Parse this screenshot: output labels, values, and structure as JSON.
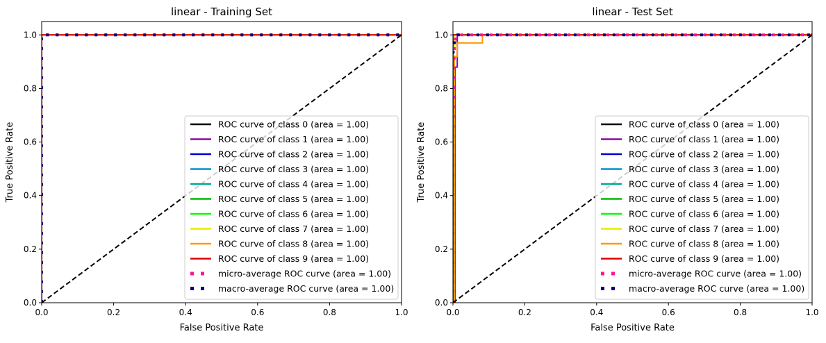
{
  "chart_data": [
    {
      "type": "line",
      "title": "linear - Training Set",
      "xlabel": "False Positive Rate",
      "ylabel": "True Positive Rate",
      "xlim": [
        0,
        1
      ],
      "ylim": [
        0,
        1.05
      ],
      "xticks": [
        "0.0",
        "0.2",
        "0.4",
        "0.6",
        "0.8",
        "1.0"
      ],
      "yticks": [
        "0.0",
        "0.2",
        "0.4",
        "0.6",
        "0.8",
        "1.0"
      ],
      "legend_position": "lower-right",
      "series": [
        {
          "name": "ROC curve of class 0 (area = 1.00)",
          "color": "#000000",
          "style": "solid",
          "x": [
            0,
            0,
            1
          ],
          "y": [
            0,
            1,
            1
          ]
        },
        {
          "name": "ROC curve of class 1 (area = 1.00)",
          "color": "#8a0aa0",
          "style": "solid",
          "x": [
            0,
            0,
            1
          ],
          "y": [
            0,
            1,
            1
          ]
        },
        {
          "name": "ROC curve of class 2 (area = 1.00)",
          "color": "#0000cc",
          "style": "solid",
          "x": [
            0,
            0,
            1
          ],
          "y": [
            0,
            1,
            1
          ]
        },
        {
          "name": "ROC curve of class 3 (area = 1.00)",
          "color": "#0092d2",
          "style": "solid",
          "x": [
            0,
            0,
            1
          ],
          "y": [
            0,
            1,
            1
          ]
        },
        {
          "name": "ROC curve of class 4 (area = 1.00)",
          "color": "#00a896",
          "style": "solid",
          "x": [
            0,
            0,
            1
          ],
          "y": [
            0,
            1,
            1
          ]
        },
        {
          "name": "ROC curve of class 5 (area = 1.00)",
          "color": "#00bb00",
          "style": "solid",
          "x": [
            0,
            0,
            1
          ],
          "y": [
            0,
            1,
            1
          ]
        },
        {
          "name": "ROC curve of class 6 (area = 1.00)",
          "color": "#00ff00",
          "style": "solid",
          "x": [
            0,
            0,
            1
          ],
          "y": [
            0,
            1,
            1
          ]
        },
        {
          "name": "ROC curve of class 7 (area = 1.00)",
          "color": "#e8ea00",
          "style": "solid",
          "x": [
            0,
            0,
            1
          ],
          "y": [
            0,
            1,
            1
          ]
        },
        {
          "name": "ROC curve of class 8 (area = 1.00)",
          "color": "#ff9900",
          "style": "solid",
          "x": [
            0,
            0,
            1
          ],
          "y": [
            0,
            1,
            1
          ]
        },
        {
          "name": "ROC curve of class 9 (area = 1.00)",
          "color": "#e00000",
          "style": "solid",
          "x": [
            0,
            0,
            1
          ],
          "y": [
            0,
            1,
            1
          ]
        },
        {
          "name": "micro-average ROC curve (area = 1.00)",
          "color": "#ff1493",
          "style": "dotted",
          "x": [
            0,
            0,
            1
          ],
          "y": [
            0,
            1,
            1
          ]
        },
        {
          "name": "macro-average ROC curve (area = 1.00)",
          "color": "#000080",
          "style": "dotted",
          "x": [
            0,
            0,
            1
          ],
          "y": [
            0,
            1,
            1
          ]
        }
      ],
      "diagonal": {
        "x": [
          0,
          1
        ],
        "y": [
          0,
          1
        ],
        "color": "#000000",
        "style": "dashed"
      }
    },
    {
      "type": "line",
      "title": "linear - Test Set",
      "xlabel": "False Positive Rate",
      "ylabel": "True Positive Rate",
      "xlim": [
        0,
        1
      ],
      "ylim": [
        0,
        1.05
      ],
      "xticks": [
        "0.0",
        "0.2",
        "0.4",
        "0.6",
        "0.8",
        "1.0"
      ],
      "yticks": [
        "0.0",
        "0.2",
        "0.4",
        "0.6",
        "0.8",
        "1.0"
      ],
      "legend_position": "lower-right",
      "series": [
        {
          "name": "ROC curve of class 0 (area = 1.00)",
          "color": "#000000",
          "style": "solid",
          "x": [
            0,
            0,
            1
          ],
          "y": [
            0,
            1,
            1
          ]
        },
        {
          "name": "ROC curve of class 1 (area = 1.00)",
          "color": "#8a0aa0",
          "style": "solid",
          "x": [
            0,
            0.006,
            0.006,
            0.012,
            0.012,
            1
          ],
          "y": [
            0,
            0,
            0.88,
            0.88,
            1,
            1
          ]
        },
        {
          "name": "ROC curve of class 2 (area = 1.00)",
          "color": "#0000cc",
          "style": "solid",
          "x": [
            0,
            0,
            1
          ],
          "y": [
            0,
            1,
            1
          ]
        },
        {
          "name": "ROC curve of class 3 (area = 1.00)",
          "color": "#0092d2",
          "style": "solid",
          "x": [
            0,
            0,
            1
          ],
          "y": [
            0,
            1,
            1
          ]
        },
        {
          "name": "ROC curve of class 4 (area = 1.00)",
          "color": "#00a896",
          "style": "solid",
          "x": [
            0,
            0,
            1
          ],
          "y": [
            0,
            1,
            1
          ]
        },
        {
          "name": "ROC curve of class 5 (area = 1.00)",
          "color": "#00bb00",
          "style": "solid",
          "x": [
            0,
            0,
            1
          ],
          "y": [
            0,
            1,
            1
          ]
        },
        {
          "name": "ROC curve of class 6 (area = 1.00)",
          "color": "#00ff00",
          "style": "solid",
          "x": [
            0,
            0,
            1
          ],
          "y": [
            0,
            1,
            1
          ]
        },
        {
          "name": "ROC curve of class 7 (area = 1.00)",
          "color": "#e8ea00",
          "style": "solid",
          "x": [
            0,
            0,
            0.003,
            0.003,
            1
          ],
          "y": [
            0,
            0.95,
            0.95,
            1,
            1
          ]
        },
        {
          "name": "ROC curve of class 8 (area = 1.00)",
          "color": "#ff9900",
          "style": "solid",
          "x": [
            0,
            0.004,
            0.004,
            0.012,
            0.012,
            0.082,
            0.082,
            1
          ],
          "y": [
            0,
            0,
            0.92,
            0.92,
            0.97,
            0.97,
            1,
            1
          ]
        },
        {
          "name": "ROC curve of class 9 (area = 1.00)",
          "color": "#e00000",
          "style": "solid",
          "x": [
            0,
            0,
            1
          ],
          "y": [
            0,
            1,
            1
          ]
        },
        {
          "name": "micro-average ROC curve (area = 1.00)",
          "color": "#ff1493",
          "style": "dotted",
          "x": [
            0,
            0,
            0.004,
            0.01,
            1
          ],
          "y": [
            0,
            0.6,
            0.97,
            1,
            1
          ]
        },
        {
          "name": "macro-average ROC curve (area = 1.00)",
          "color": "#000080",
          "style": "dotted",
          "x": [
            0,
            0.003,
            0.006,
            0.012,
            1
          ],
          "y": [
            0.93,
            0.95,
            0.99,
            1,
            1
          ]
        }
      ],
      "diagonal": {
        "x": [
          0,
          1
        ],
        "y": [
          0,
          1
        ],
        "color": "#000000",
        "style": "dashed"
      }
    }
  ]
}
